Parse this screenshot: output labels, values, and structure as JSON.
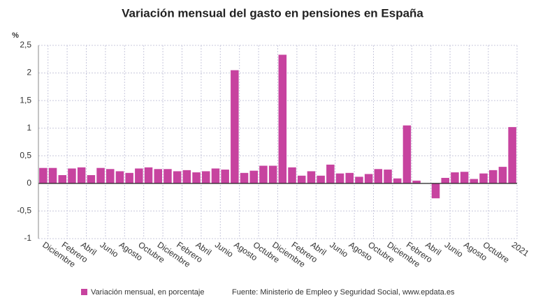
{
  "chart_data": {
    "type": "bar",
    "title": "Variación mensual del gasto en pensiones en España",
    "y_label": "%",
    "source": "Fuente: Ministerio de Empleo y Seguridad Social, www.epdata.es",
    "categories": [
      "Diciembre",
      null,
      "Febrero",
      null,
      "Abril",
      null,
      "Junio",
      null,
      "Agosto",
      null,
      "Octubre",
      null,
      "Diciembre",
      null,
      "Febrero",
      null,
      "Abril",
      null,
      "Junio",
      null,
      "Agosto",
      null,
      "Octubre",
      null,
      "Diciembre",
      null,
      "Febrero",
      null,
      "Abril",
      null,
      "Junio",
      null,
      "Agosto",
      null,
      "Octubre",
      null,
      "Diciembre",
      null,
      "Febrero",
      null,
      "Abril",
      null,
      "Junio",
      null,
      "Agosto",
      null,
      "Octubre",
      null,
      null,
      "2021"
    ],
    "series": [
      {
        "name": "Variación mensual, en porcentaje",
        "color": "#c7439f",
        "values": [
          0.28,
          0.28,
          0.15,
          0.27,
          0.29,
          0.15,
          0.28,
          0.26,
          0.22,
          0.19,
          0.27,
          0.29,
          0.26,
          0.26,
          0.22,
          0.24,
          0.2,
          0.22,
          0.27,
          0.25,
          2.05,
          0.19,
          0.23,
          0.32,
          0.32,
          2.33,
          0.29,
          0.14,
          0.22,
          0.14,
          0.34,
          0.18,
          0.19,
          0.12,
          0.17,
          0.26,
          0.25,
          0.09,
          1.05,
          0.05,
          0,
          -0.27,
          0.1,
          0.2,
          0.21,
          0.08,
          0.18,
          0.24,
          0.3,
          1.02
        ]
      }
    ],
    "ylim": [
      -1,
      2.5
    ],
    "yticks": [
      -1,
      {
        "value": -0.5,
        "label": "-0,5"
      },
      0,
      {
        "value": 0.5,
        "label": "0,5"
      },
      1,
      {
        "value": 1.5,
        "label": "1,5"
      },
      2,
      {
        "value": 2.5,
        "label": "2,5"
      }
    ],
    "grid": true
  }
}
